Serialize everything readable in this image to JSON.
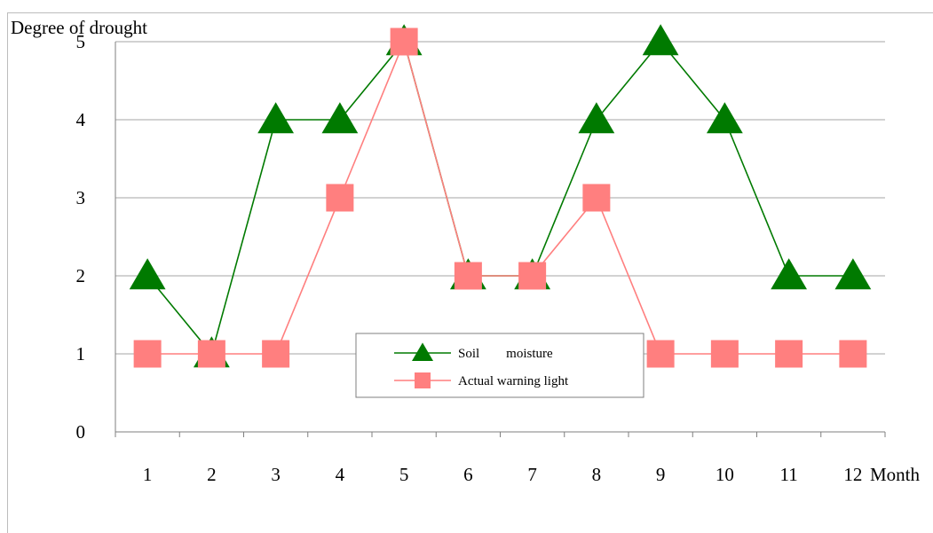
{
  "chart_data": {
    "type": "line",
    "ylabel": "Degree of drought",
    "xlabel": "Month",
    "categories": [
      "1",
      "2",
      "3",
      "4",
      "5",
      "6",
      "7",
      "8",
      "9",
      "10",
      "11",
      "12"
    ],
    "ylim": [
      0,
      5
    ],
    "yticks": [
      "0",
      "1",
      "2",
      "3",
      "4",
      "5"
    ],
    "grid": true,
    "legend_position": "center-bottom",
    "series": [
      {
        "name": "Soil        moisture",
        "marker": "triangle",
        "color": "#007a00",
        "values": [
          2,
          1,
          4,
          4,
          5,
          2,
          2,
          4,
          5,
          4,
          2,
          2
        ]
      },
      {
        "name": "Actual warning light",
        "marker": "square",
        "color": "#ff7f7f",
        "values": [
          1,
          1,
          1,
          3,
          5,
          2,
          2,
          3,
          1,
          1,
          1,
          1
        ]
      }
    ]
  }
}
